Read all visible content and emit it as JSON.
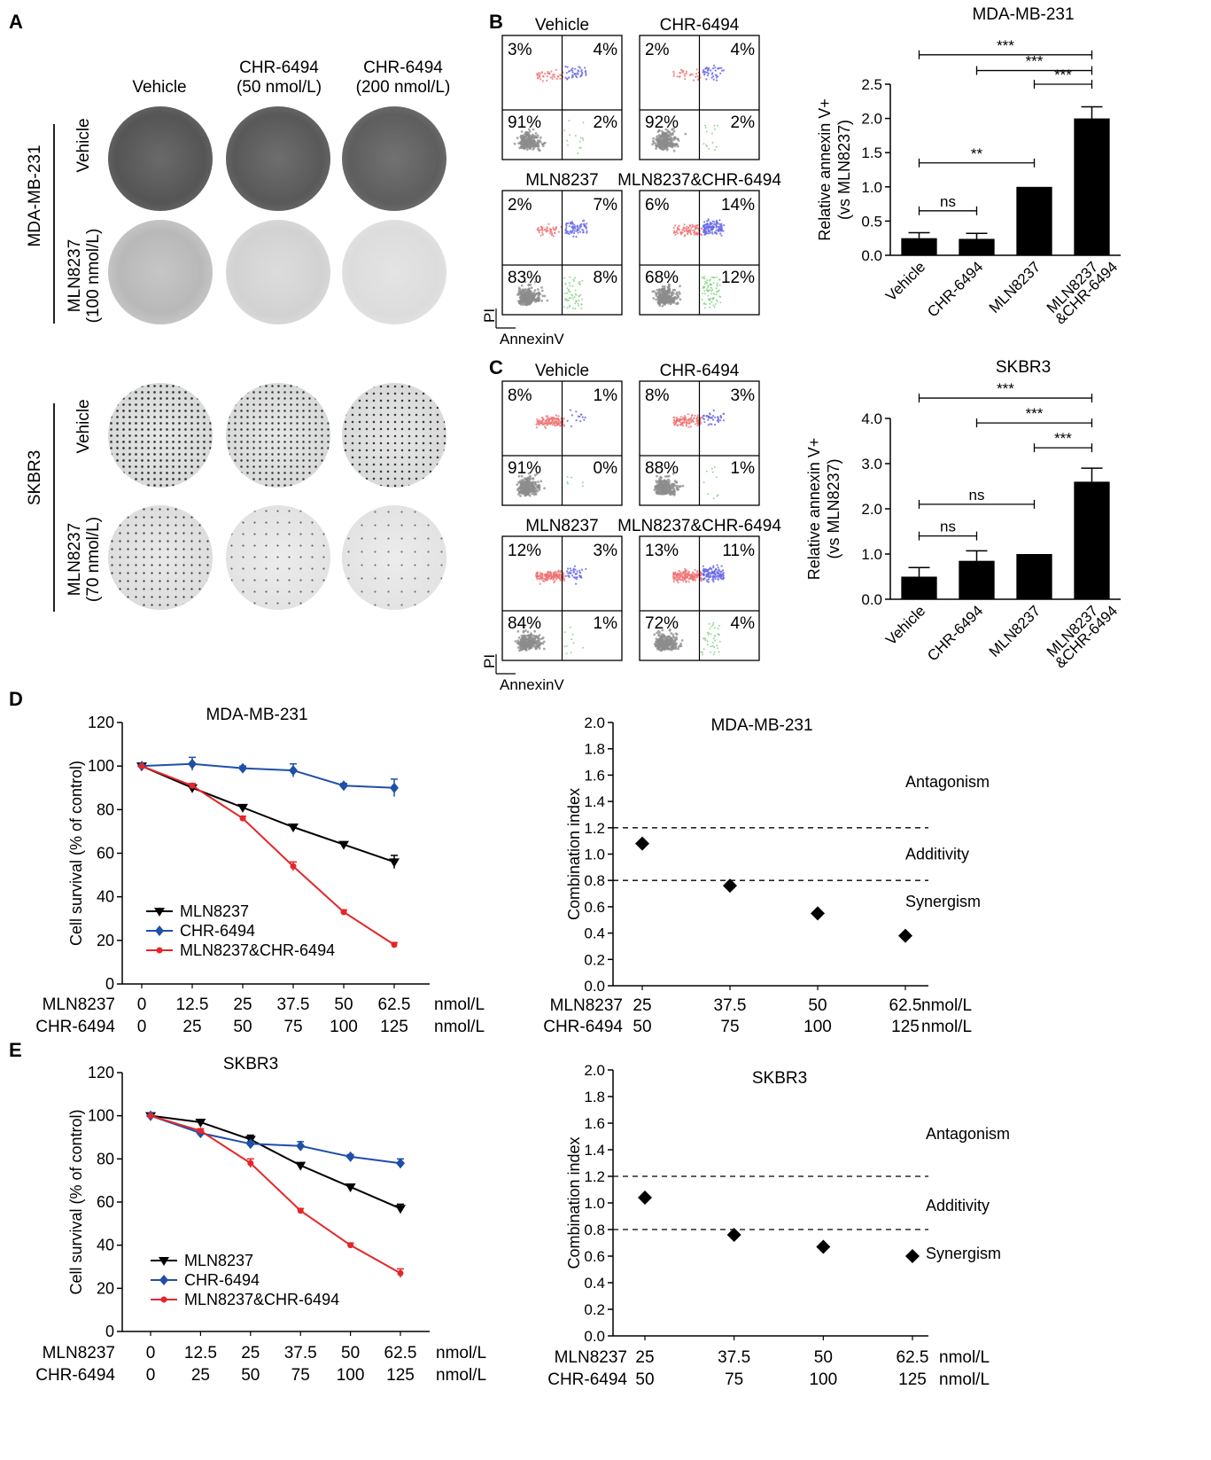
{
  "panel_letters": {
    "a": "A",
    "b": "B",
    "c": "C",
    "d": "D",
    "e": "E"
  },
  "panel_a": {
    "columns": [
      "Vehicle",
      "CHR-6494\n(50 nmol/L)",
      "CHR-6494\n(200 nmol/L)"
    ],
    "lines": [
      "MDA-MB-231",
      "SKBR3"
    ],
    "row_labels": {
      "mda_vehicle": "Vehicle",
      "mda_mln": "MLN8237\n(100 nmol/L)",
      "skbr_vehicle": "Vehicle",
      "skbr_mln": "MLN8237\n(70 nmol/L)"
    },
    "colors": {
      "dense": "#5a5a5a",
      "sparse": "#cfcfcf",
      "dots": "#2f3b3a"
    }
  },
  "flow_b": {
    "axis_y": "PI",
    "axis_x": "AnnexinV",
    "plots": [
      {
        "title": "Vehicle",
        "ul": "3%",
        "ur": "4%",
        "ll": "91%",
        "lr": "2%"
      },
      {
        "title": "CHR-6494",
        "ul": "2%",
        "ur": "4%",
        "ll": "92%",
        "lr": "2%"
      },
      {
        "title": "MLN8237",
        "ul": "2%",
        "ur": "7%",
        "ll": "83%",
        "lr": "8%"
      },
      {
        "title": "MLN8237&CHR-6494",
        "ul": "6%",
        "ur": "14%",
        "ll": "68%",
        "lr": "12%"
      }
    ]
  },
  "flow_c": {
    "axis_y": "PI",
    "axis_x": "AnnexinV",
    "plots": [
      {
        "title": "Vehicle",
        "ul": "8%",
        "ur": "1%",
        "ll": "91%",
        "lr": "0%"
      },
      {
        "title": "CHR-6494",
        "ul": "8%",
        "ur": "3%",
        "ll": "88%",
        "lr": "1%"
      },
      {
        "title": "MLN8237",
        "ul": "12%",
        "ur": "3%",
        "ll": "84%",
        "lr": "1%"
      },
      {
        "title": "MLN8237&CHR-6494",
        "ul": "13%",
        "ur": "11%",
        "ll": "72%",
        "lr": "4%"
      }
    ]
  },
  "chart_data": [
    {
      "id": "bar_b",
      "type": "bar",
      "title": "MDA-MB-231",
      "ylabel": "Relative annexin V+\n(vs MLN8237)",
      "categories": [
        "Vehicle",
        "CHR-6494",
        "MLN8237",
        "MLN8237\n&CHR-6494"
      ],
      "values": [
        0.25,
        0.24,
        1.0,
        2.0
      ],
      "errors": [
        0.08,
        0.08,
        0.0,
        0.17
      ],
      "ylim": [
        0,
        2.5
      ],
      "yticks": [
        "0.0",
        "0.5",
        "1.0",
        "1.5",
        "2.0",
        "2.5"
      ],
      "brackets": [
        {
          "from": 0,
          "to": 1,
          "label": "ns",
          "level": 0.65
        },
        {
          "from": 0,
          "to": 2,
          "label": "**",
          "level": 1.35
        },
        {
          "from": 2,
          "to": 3,
          "label": "***",
          "level": 2.5
        },
        {
          "from": 1,
          "to": 3,
          "label": "***",
          "level": 2.7
        },
        {
          "from": 0,
          "to": 3,
          "label": "***",
          "level": 2.93
        }
      ]
    },
    {
      "id": "bar_c",
      "type": "bar",
      "title": "SKBR3",
      "ylabel": "Relative annexin V+\n(vs MLN8237)",
      "categories": [
        "Vehicle",
        "CHR-6494",
        "MLN8237",
        "MLN8237\n&CHR-6494"
      ],
      "values": [
        0.5,
        0.85,
        1.0,
        2.6
      ],
      "errors": [
        0.2,
        0.22,
        0.0,
        0.3
      ],
      "ylim": [
        0,
        4.0
      ],
      "yticks": [
        "0.0",
        "1.0",
        "2.0",
        "3.0",
        "4.0"
      ],
      "brackets": [
        {
          "from": 0,
          "to": 1,
          "label": "ns",
          "level": 1.4
        },
        {
          "from": 0,
          "to": 2,
          "label": "ns",
          "level": 2.1
        },
        {
          "from": 2,
          "to": 3,
          "label": "***",
          "level": 3.35
        },
        {
          "from": 1,
          "to": 3,
          "label": "***",
          "level": 3.9
        },
        {
          "from": 0,
          "to": 3,
          "label": "***",
          "level": 4.45
        }
      ]
    },
    {
      "id": "line_d",
      "type": "line",
      "title": "MDA-MB-231",
      "ylabel": "Cell survival (% of control)",
      "x_labels": [
        "0",
        "12.5",
        "25",
        "37.5",
        "50",
        "62.5"
      ],
      "x2_labels": [
        "0",
        "25",
        "50",
        "75",
        "100",
        "125"
      ],
      "row1_name": "MLN8237",
      "row2_name": "CHR-6494",
      "unit": "nmol/L",
      "ylim": [
        0,
        120
      ],
      "yticks": [
        "0",
        "20",
        "40",
        "60",
        "80",
        "100",
        "120"
      ],
      "series": [
        {
          "name": "MLN8237",
          "color": "#000000",
          "marker": "triangle",
          "values": [
            100,
            90,
            81,
            72,
            64,
            56
          ],
          "errors": [
            0,
            1,
            1,
            1,
            1,
            3
          ]
        },
        {
          "name": "CHR-6494",
          "color": "#1f4fa8",
          "marker": "diamond",
          "values": [
            100,
            101,
            99,
            98,
            91,
            90
          ],
          "errors": [
            0,
            3,
            1,
            3,
            1,
            4
          ]
        },
        {
          "name": "MLN8237&CHR-6494",
          "color": "#e4262a",
          "marker": "circle",
          "values": [
            100,
            91,
            76,
            54,
            33,
            18
          ],
          "errors": [
            0,
            1,
            1,
            2,
            1,
            1
          ]
        }
      ]
    },
    {
      "id": "ci_d",
      "type": "scatter",
      "title": "MDA-MB-231",
      "ylabel": "Combination index",
      "x_labels": [
        "25",
        "37.5",
        "50",
        "62.5"
      ],
      "x2_labels": [
        "50",
        "75",
        "100",
        "125"
      ],
      "row1_name": "MLN8237",
      "row2_name": "CHR-6494",
      "unit": "nmol/L",
      "ylim": [
        0,
        2.0
      ],
      "yticks": [
        "0.0",
        "0.2",
        "0.4",
        "0.6",
        "0.8",
        "1.0",
        "1.2",
        "1.4",
        "1.6",
        "1.8",
        "2.0"
      ],
      "values": [
        1.08,
        0.76,
        0.55,
        0.38
      ],
      "thresholds": [
        1.2,
        0.8
      ],
      "zones": [
        {
          "label": "Antagonism",
          "y": 1.55
        },
        {
          "label": "Additivity",
          "y": 1.0
        },
        {
          "label": "Synergism",
          "y": 0.64
        }
      ]
    },
    {
      "id": "line_e",
      "type": "line",
      "title": "SKBR3",
      "ylabel": "Cell survival (% of control)",
      "x_labels": [
        "0",
        "12.5",
        "25",
        "37.5",
        "50",
        "62.5"
      ],
      "x2_labels": [
        "0",
        "25",
        "50",
        "75",
        "100",
        "125"
      ],
      "row1_name": "MLN8237",
      "row2_name": "CHR-6494",
      "unit": "nmol/L",
      "ylim": [
        0,
        120
      ],
      "yticks": [
        "0",
        "20",
        "40",
        "60",
        "80",
        "100",
        "120"
      ],
      "series": [
        {
          "name": "MLN8237",
          "color": "#000000",
          "marker": "triangle",
          "values": [
            100,
            97,
            89,
            77,
            67,
            57
          ],
          "errors": [
            0,
            1,
            2,
            1,
            1,
            2
          ]
        },
        {
          "name": "CHR-6494",
          "color": "#1f4fa8",
          "marker": "diamond",
          "values": [
            100,
            92,
            87,
            86,
            81,
            78
          ],
          "errors": [
            0,
            1,
            1,
            2,
            1,
            2
          ]
        },
        {
          "name": "MLN8237&CHR-6494",
          "color": "#e4262a",
          "marker": "circle",
          "values": [
            100,
            93,
            78,
            56,
            40,
            27
          ],
          "errors": [
            0,
            1,
            2,
            1,
            1,
            2
          ]
        }
      ]
    },
    {
      "id": "ci_e",
      "type": "scatter",
      "title": "SKBR3",
      "ylabel": "Combination index",
      "x_labels": [
        "25",
        "37.5",
        "50",
        "62.5"
      ],
      "x2_labels": [
        "50",
        "75",
        "100",
        "125"
      ],
      "row1_name": "MLN8237",
      "row2_name": "CHR-6494",
      "unit": "nmol/L",
      "ylim": [
        0,
        2.0
      ],
      "yticks": [
        "0.0",
        "0.2",
        "0.4",
        "0.6",
        "0.8",
        "1.0",
        "1.2",
        "1.4",
        "1.6",
        "1.8",
        "2.0"
      ],
      "values": [
        1.04,
        0.76,
        0.67,
        0.6
      ],
      "thresholds": [
        1.2,
        0.8
      ],
      "zones": [
        {
          "label": "Antagonism",
          "y": 1.52
        },
        {
          "label": "Additivity",
          "y": 0.98
        },
        {
          "label": "Synergism",
          "y": 0.62
        }
      ]
    }
  ]
}
